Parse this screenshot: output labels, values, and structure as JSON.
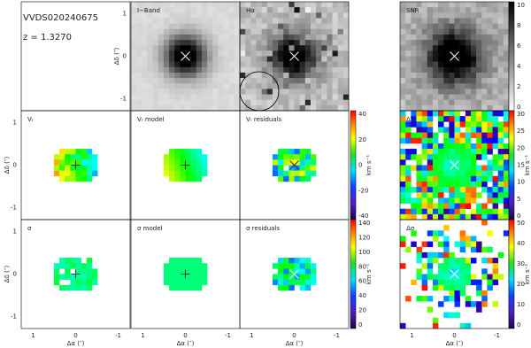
{
  "header": {
    "object": "VVDS020240675",
    "redshift": "z  =  1.3270"
  },
  "panels": [
    "I−Band",
    "Hα",
    "SNR",
    "Vᵣ",
    "Vᵣ model",
    "Vᵣ residuals",
    "σ",
    "σ model",
    "σ residuals",
    "ΔV",
    "Δσ"
  ],
  "axes": {
    "y_label": "Δδ (″)",
    "x_label": "Δα (″)",
    "ticks": [
      "1",
      "0",
      "-1"
    ]
  },
  "colorbars": [
    {
      "unit": "",
      "ticks": [
        "0",
        "2",
        "4",
        "6",
        "8",
        "10"
      ]
    },
    {
      "unit": "km s⁻¹",
      "ticks": [
        "40",
        "20",
        "0",
        "-20",
        "-40"
      ]
    },
    {
      "unit": "km s⁻¹",
      "ticks": [
        "140",
        "120",
        "100",
        "80",
        "60",
        "40",
        "20",
        "0"
      ]
    },
    {
      "unit": "km s⁻¹",
      "ticks": [
        "30",
        "25",
        "20",
        "15",
        "10",
        "5",
        "0"
      ]
    },
    {
      "unit": "km s⁻¹",
      "ticks": [
        "50",
        "40",
        "30",
        "20",
        "10",
        "0"
      ]
    }
  ]
}
